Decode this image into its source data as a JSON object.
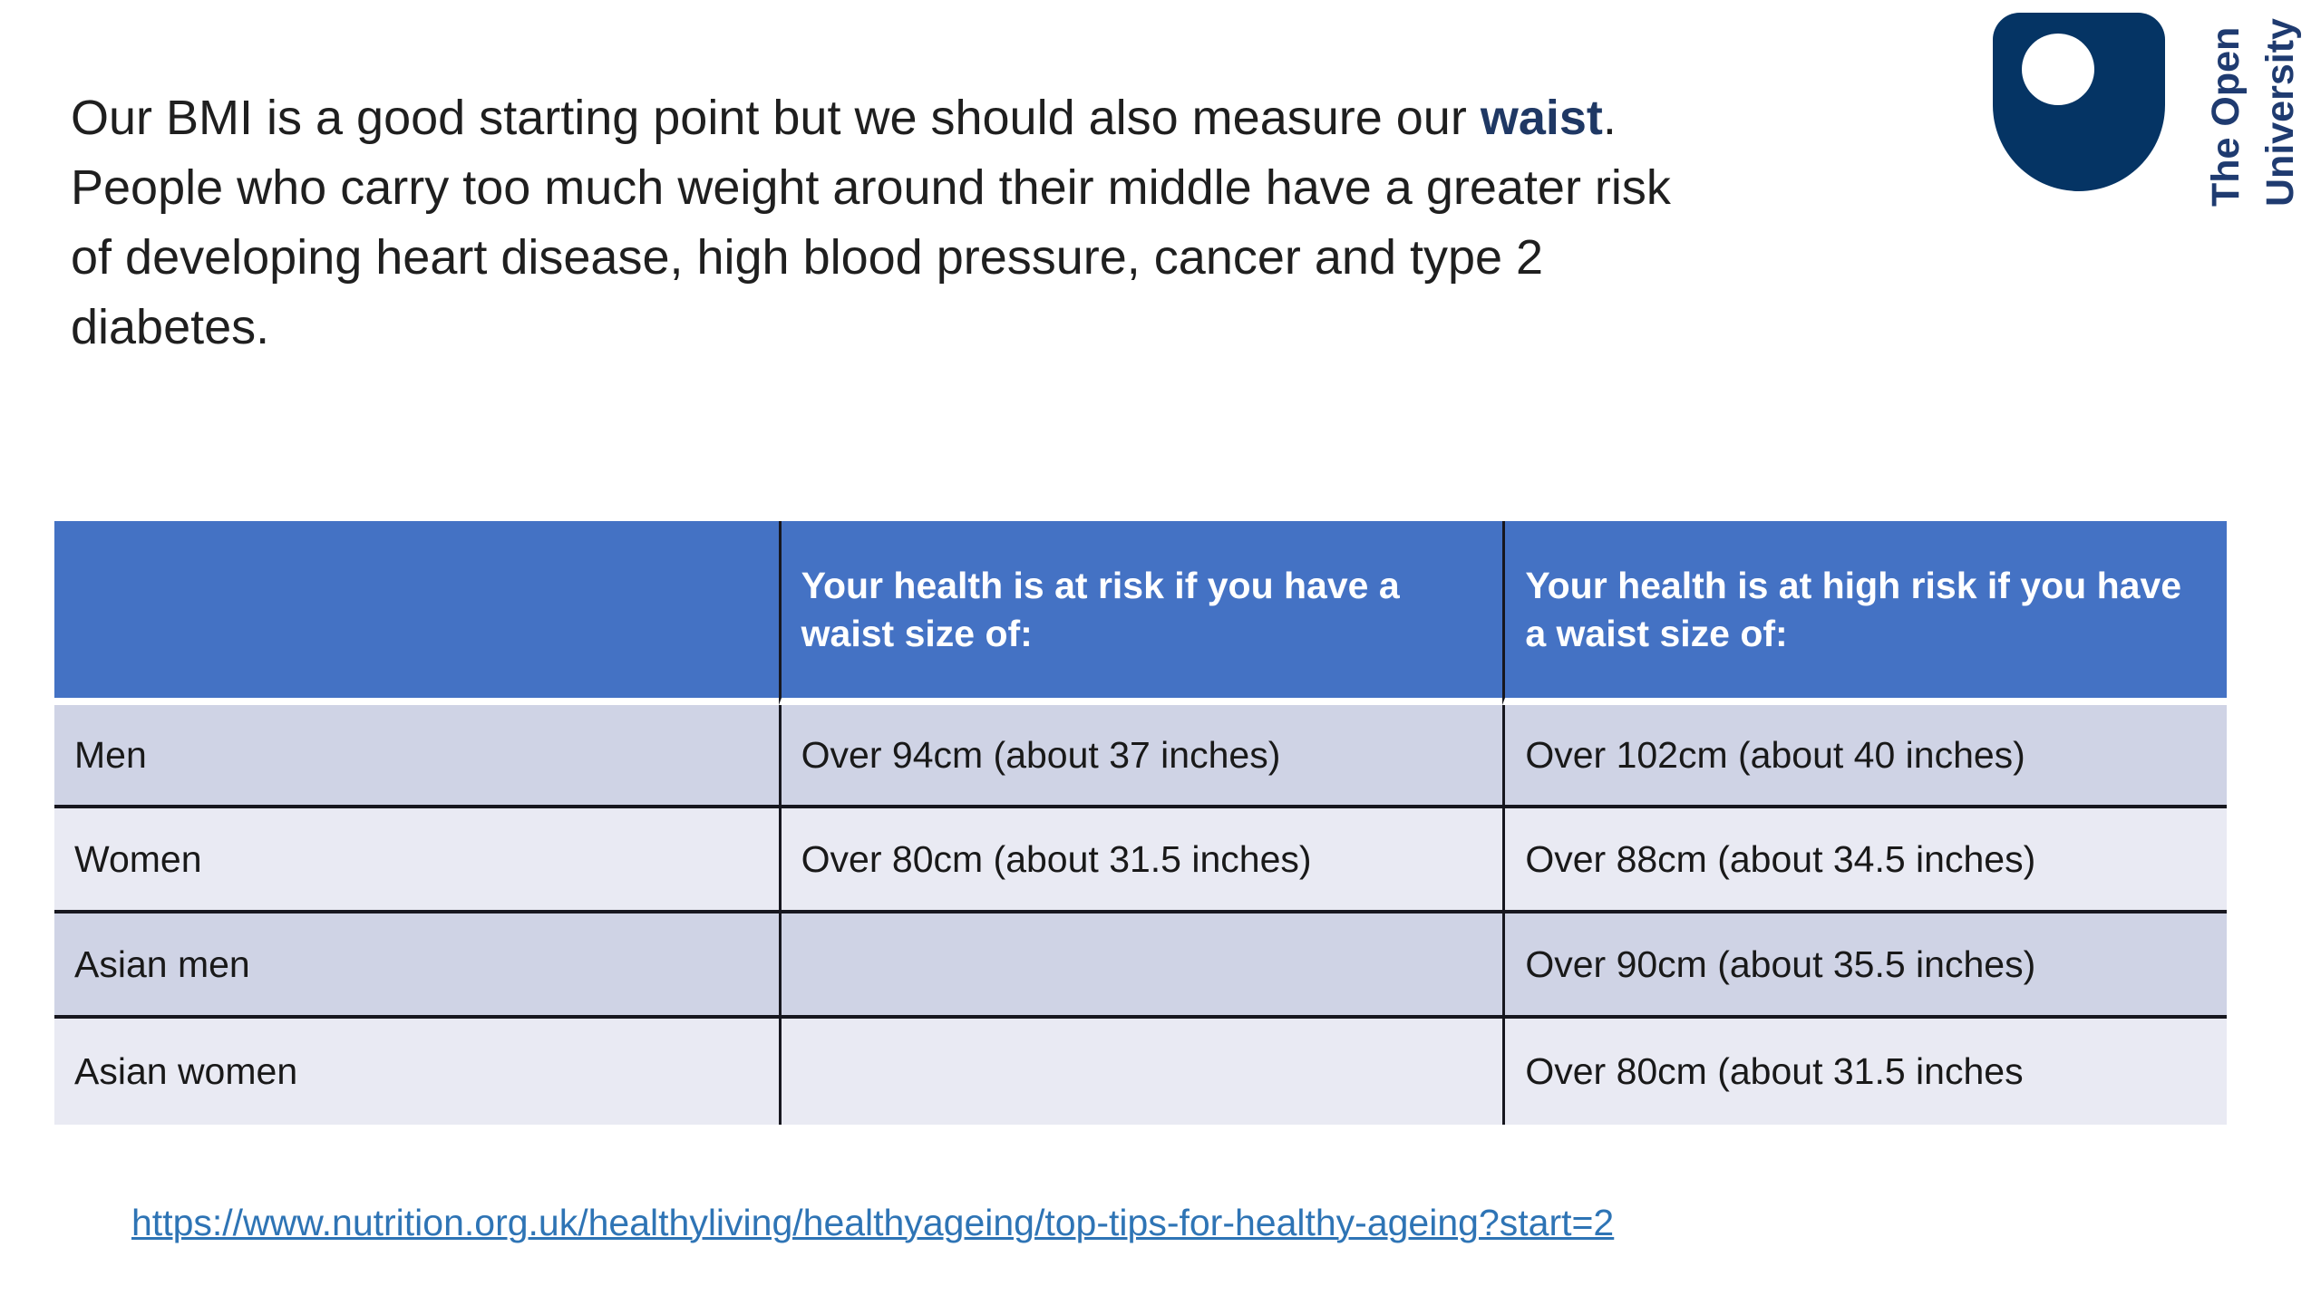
{
  "paragraph": {
    "line1_pre": "Our BMI is a good starting point but we should also measure our ",
    "line1_bold": "waist",
    "line1_post": ".",
    "line2": "People who carry too much weight around their middle have a greater risk",
    "line3": "of developing heart disease, high blood pressure, cancer and type 2",
    "line4": "diabetes."
  },
  "logo": {
    "line1": "The Open",
    "line2": "University"
  },
  "table": {
    "headers": [
      "",
      "Your health is at risk if you have a waist size of:",
      "Your health is at high risk if you have a waist size of:"
    ],
    "rows": [
      {
        "label": "Men",
        "risk": "Over 94cm (about 37 inches)",
        "high_risk": "Over 102cm (about 40 inches)"
      },
      {
        "label": "Women",
        "risk": "Over 80cm (about 31.5 inches)",
        "high_risk": "Over 88cm (about 34.5 inches)"
      },
      {
        "label": "Asian men",
        "risk": "",
        "high_risk": "Over 90cm (about 35.5 inches)"
      },
      {
        "label": "Asian women",
        "risk": "",
        "high_risk": "Over 80cm (about 31.5 inches"
      }
    ]
  },
  "link": {
    "text": "https://www.nutrition.org.uk/healthyliving/healthyageing/top-tips-for-healthy-ageing?start=2"
  },
  "colors": {
    "background": "#FFFFFF",
    "text_dark": "#1F1F1F",
    "waist_navy": "#1F3864",
    "navy": "#053464",
    "logo_text_navy": "#1F3B70",
    "header_blue": "#4472C4",
    "header_text": "#FFFFFF",
    "row_shaded": "#CFD3E5",
    "row_light": "#E9EAF3",
    "border_dark": "#17171F",
    "link_blue": "#2E74B5"
  }
}
